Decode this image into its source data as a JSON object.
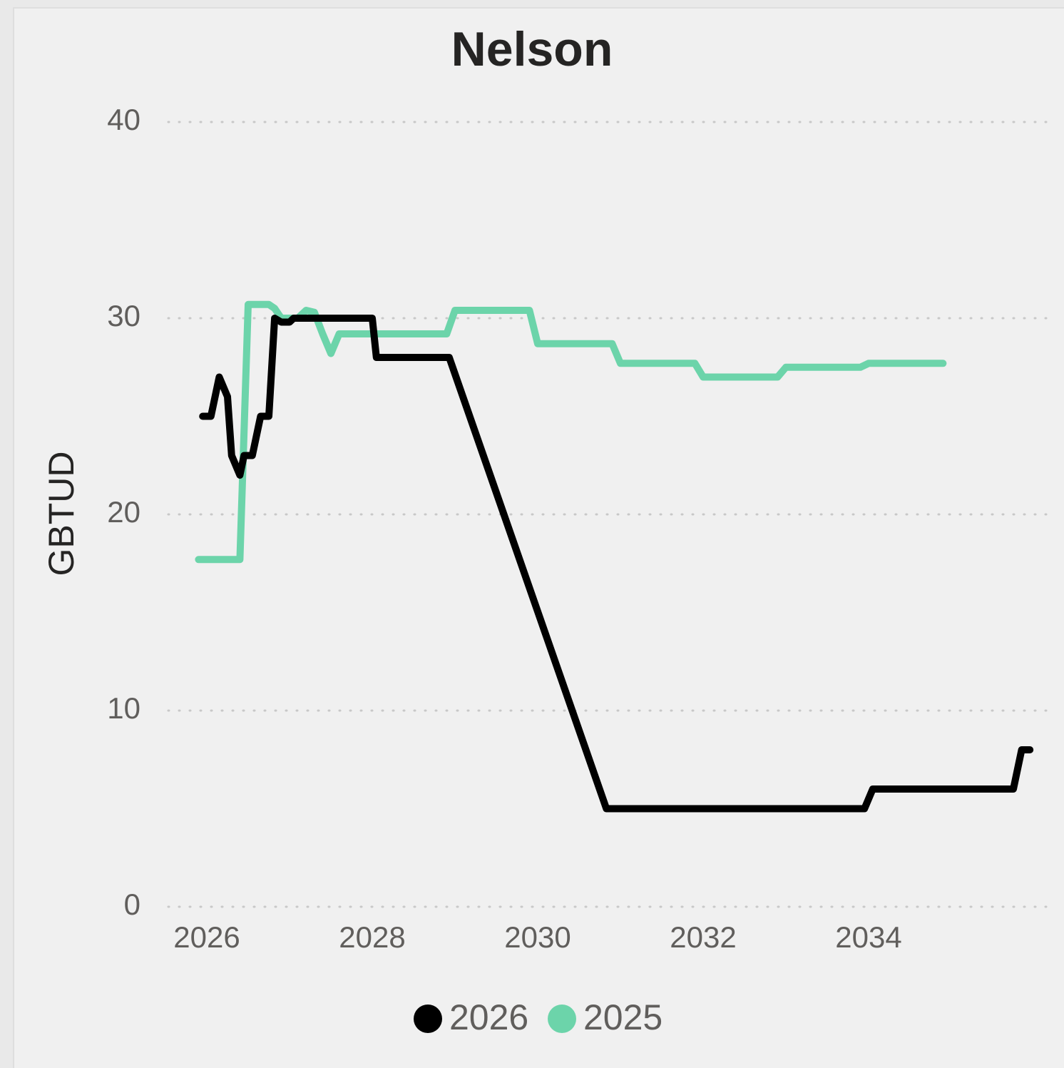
{
  "chart_data": {
    "type": "line",
    "title": "Nelson",
    "ylabel": "GBTUD",
    "xlabel": "",
    "ylim": [
      0,
      40
    ],
    "yticks": [
      0,
      10,
      20,
      30,
      40
    ],
    "xticks": [
      2026,
      2028,
      2030,
      2032,
      2034
    ],
    "grid": "horizontal dotted",
    "legend": "bottom-center",
    "series": [
      {
        "name": "2026",
        "color": "#000000",
        "points": [
          [
            2025.95,
            25.0
          ],
          [
            2026.05,
            25.0
          ],
          [
            2026.15,
            27.0
          ],
          [
            2026.25,
            26.0
          ],
          [
            2026.3,
            23.0
          ],
          [
            2026.4,
            22.0
          ],
          [
            2026.45,
            23.0
          ],
          [
            2026.55,
            23.0
          ],
          [
            2026.65,
            25.0
          ],
          [
            2026.75,
            25.0
          ],
          [
            2026.82,
            30.0
          ],
          [
            2026.9,
            29.8
          ],
          [
            2027.0,
            29.8
          ],
          [
            2027.05,
            30.0
          ],
          [
            2028.0,
            30.0
          ],
          [
            2028.05,
            28.0
          ],
          [
            2028.93,
            28.0
          ],
          [
            2030.83,
            5.0
          ],
          [
            2033.95,
            5.0
          ],
          [
            2034.05,
            6.0
          ],
          [
            2035.75,
            6.0
          ],
          [
            2035.85,
            8.0
          ],
          [
            2035.95,
            8.0
          ]
        ]
      },
      {
        "name": "2025",
        "color": "#6cd4aa",
        "points": [
          [
            2025.9,
            17.7
          ],
          [
            2026.4,
            17.7
          ],
          [
            2026.5,
            30.7
          ],
          [
            2026.75,
            30.7
          ],
          [
            2026.82,
            30.5
          ],
          [
            2026.9,
            30.0
          ],
          [
            2027.1,
            30.0
          ],
          [
            2027.2,
            30.4
          ],
          [
            2027.3,
            30.3
          ],
          [
            2027.4,
            29.2
          ],
          [
            2027.5,
            28.2
          ],
          [
            2027.6,
            29.2
          ],
          [
            2028.9,
            29.2
          ],
          [
            2029.0,
            30.4
          ],
          [
            2029.9,
            30.4
          ],
          [
            2030.0,
            28.7
          ],
          [
            2030.9,
            28.7
          ],
          [
            2031.0,
            27.7
          ],
          [
            2031.9,
            27.7
          ],
          [
            2032.0,
            27.0
          ],
          [
            2032.9,
            27.0
          ],
          [
            2033.0,
            27.5
          ],
          [
            2033.9,
            27.5
          ],
          [
            2034.0,
            27.7
          ],
          [
            2034.9,
            27.7
          ]
        ]
      }
    ]
  }
}
